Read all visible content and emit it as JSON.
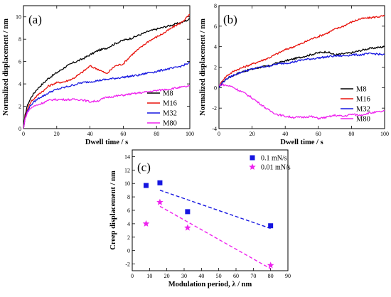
{
  "chart_data": [
    {
      "type": "line",
      "panel_label": "(a)",
      "xlabel": "Dwell time / s",
      "ylabel": "Normalized displacement / nm",
      "xlim": [
        0,
        100
      ],
      "ylim": [
        0,
        11
      ],
      "xticks": [
        0,
        20,
        40,
        60,
        80,
        100
      ],
      "yticks": [
        0,
        2,
        4,
        6,
        8,
        10
      ],
      "legend_position": "bottom-right",
      "series": [
        {
          "name": "M8",
          "color": "#000000",
          "x": [
            0,
            1,
            2,
            3,
            5,
            8,
            10,
            13,
            15,
            18,
            20,
            25,
            30,
            35,
            40,
            45,
            50,
            55,
            60,
            65,
            70,
            75,
            80,
            85,
            90,
            95,
            100
          ],
          "y": [
            0,
            1.2,
            1.9,
            2.3,
            2.9,
            3.5,
            3.8,
            4.2,
            4.5,
            4.8,
            5.0,
            5.5,
            5.9,
            6.2,
            6.6,
            7.0,
            7.2,
            7.6,
            7.9,
            8.1,
            8.4,
            8.7,
            8.9,
            9.1,
            9.3,
            9.5,
            9.8
          ]
        },
        {
          "name": "M16",
          "color": "#e8120c",
          "x": [
            0,
            1,
            2,
            3,
            5,
            8,
            10,
            13,
            15,
            18,
            20,
            25,
            30,
            35,
            40,
            45,
            50,
            55,
            60,
            65,
            70,
            75,
            80,
            85,
            90,
            95,
            100
          ],
          "y": [
            0,
            1.0,
            1.6,
            2.0,
            2.5,
            2.9,
            3.2,
            3.5,
            3.8,
            4.0,
            4.1,
            4.2,
            4.5,
            5.0,
            5.6,
            5.3,
            4.9,
            5.6,
            5.8,
            6.6,
            7.2,
            7.8,
            8.2,
            8.6,
            9.1,
            9.5,
            10.2
          ]
        },
        {
          "name": "M32",
          "color": "#1515e0",
          "x": [
            0,
            1,
            2,
            3,
            5,
            8,
            10,
            13,
            15,
            18,
            20,
            25,
            30,
            35,
            40,
            45,
            50,
            55,
            60,
            65,
            70,
            75,
            80,
            85,
            90,
            95,
            100
          ],
          "y": [
            0,
            0.9,
            1.4,
            1.8,
            2.2,
            2.6,
            2.8,
            3.0,
            3.2,
            3.4,
            3.5,
            3.7,
            3.9,
            4.1,
            4.2,
            4.3,
            4.4,
            4.5,
            4.6,
            4.7,
            4.8,
            5.0,
            5.1,
            5.3,
            5.4,
            5.6,
            5.9
          ]
        },
        {
          "name": "M80",
          "color": "#ee22ee",
          "x": [
            0,
            1,
            2,
            3,
            5,
            8,
            10,
            13,
            15,
            18,
            20,
            25,
            30,
            35,
            40,
            45,
            50,
            55,
            60,
            65,
            70,
            75,
            80,
            85,
            90,
            95,
            100
          ],
          "y": [
            0,
            0.9,
            1.3,
            1.6,
            1.9,
            2.1,
            2.2,
            2.4,
            2.5,
            2.6,
            2.6,
            2.6,
            2.6,
            2.6,
            2.4,
            2.5,
            2.8,
            2.9,
            3.0,
            3.1,
            3.2,
            3.3,
            3.4,
            3.5,
            3.6,
            3.7,
            3.8
          ]
        }
      ]
    },
    {
      "type": "line",
      "panel_label": "(b)",
      "xlabel": "Dwell time / s",
      "ylabel": "Normalized displacement / nm",
      "xlim": [
        0,
        100
      ],
      "ylim": [
        -4,
        8
      ],
      "xticks": [
        0,
        20,
        40,
        60,
        80,
        100
      ],
      "yticks": [
        -4,
        -2,
        0,
        2,
        4,
        6,
        8
      ],
      "legend_position": "bottom-right",
      "series": [
        {
          "name": "M8",
          "color": "#000000",
          "x": [
            0,
            2,
            5,
            10,
            15,
            20,
            25,
            30,
            35,
            40,
            45,
            50,
            55,
            60,
            65,
            70,
            75,
            80,
            85,
            90,
            95,
            100
          ],
          "y": [
            0,
            0.5,
            0.9,
            1.3,
            1.6,
            1.8,
            2.0,
            2.1,
            2.4,
            2.6,
            2.8,
            3.0,
            3.2,
            3.4,
            3.5,
            3.2,
            3.3,
            3.4,
            3.6,
            3.8,
            3.9,
            4.0
          ]
        },
        {
          "name": "M16",
          "color": "#e8120c",
          "x": [
            0,
            2,
            5,
            10,
            15,
            20,
            25,
            30,
            35,
            40,
            45,
            50,
            55,
            60,
            65,
            70,
            75,
            80,
            85,
            90,
            95,
            100
          ],
          "y": [
            0,
            0.7,
            1.2,
            1.7,
            2.0,
            2.3,
            2.6,
            2.9,
            3.3,
            3.7,
            4.0,
            4.3,
            4.7,
            5.0,
            5.3,
            5.7,
            6.0,
            6.4,
            6.7,
            6.8,
            6.9,
            7.0
          ]
        },
        {
          "name": "M32",
          "color": "#1515e0",
          "x": [
            0,
            2,
            5,
            10,
            15,
            20,
            25,
            30,
            35,
            40,
            45,
            50,
            55,
            60,
            65,
            70,
            75,
            80,
            85,
            90,
            95,
            100
          ],
          "y": [
            0,
            0.5,
            0.9,
            1.3,
            1.6,
            1.8,
            2.0,
            2.1,
            2.3,
            2.4,
            2.5,
            2.7,
            2.8,
            2.9,
            3.0,
            3.1,
            3.1,
            3.2,
            3.2,
            3.3,
            3.3,
            3.2
          ]
        },
        {
          "name": "M80",
          "color": "#ee22ee",
          "x": [
            0,
            2,
            5,
            8,
            10,
            15,
            20,
            25,
            30,
            35,
            40,
            45,
            50,
            55,
            60,
            65,
            70,
            75,
            80,
            85,
            90,
            95,
            100
          ],
          "y": [
            0.2,
            0.3,
            0.2,
            0.1,
            -0.1,
            -0.5,
            -1.0,
            -1.6,
            -2.2,
            -2.6,
            -2.8,
            -2.9,
            -2.9,
            -2.8,
            -3.0,
            -2.9,
            -2.7,
            -2.8,
            -2.6,
            -2.7,
            -2.5,
            -2.4,
            -2.3
          ]
        }
      ]
    },
    {
      "type": "scatter",
      "panel_label": "(c)",
      "xlabel": "Modulation period, λ / nm",
      "ylabel": "Creep displacement / nm",
      "xlim": [
        0,
        90
      ],
      "ylim": [
        -3,
        15
      ],
      "xticks": [
        0,
        10,
        20,
        30,
        40,
        50,
        60,
        70,
        80,
        90
      ],
      "yticks": [
        -2,
        0,
        2,
        4,
        6,
        8,
        10,
        12,
        14
      ],
      "legend_position": "top-right",
      "series": [
        {
          "name": "0.1 mN/s",
          "color": "#1515e0",
          "marker": "square",
          "x": [
            8,
            16,
            32,
            80
          ],
          "y": [
            9.7,
            10.1,
            5.8,
            3.7
          ],
          "fit": {
            "x": [
              16,
              80
            ],
            "y": [
              9.0,
              3.3
            ]
          }
        },
        {
          "name": "0.01 mN/s",
          "color": "#ee22ee",
          "marker": "star",
          "x": [
            8,
            16,
            32,
            80
          ],
          "y": [
            4.0,
            7.2,
            3.4,
            -2.2
          ],
          "fit": {
            "x": [
              16,
              80
            ],
            "y": [
              6.6,
              -2.7
            ]
          }
        }
      ]
    }
  ]
}
